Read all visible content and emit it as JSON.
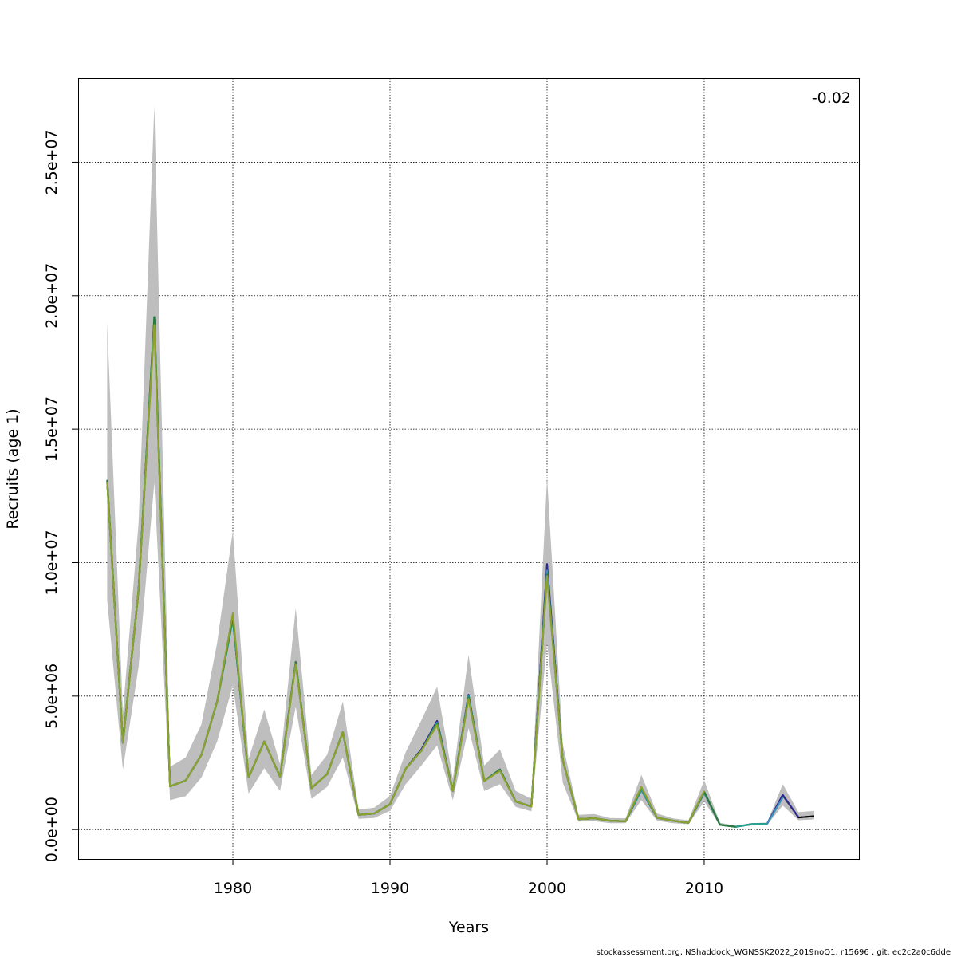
{
  "chart_data": {
    "type": "line",
    "title": "",
    "xlabel": "Years",
    "ylabel": "Recruits (age 1)",
    "annotation": "-0.02",
    "footer": "stockassessment.org, NShaddock_WGNSSK2022_2019noQ1, r15696 , git: ec2c2a0c6dde",
    "xlim": [
      1970.15,
      2019.85
    ],
    "ylim": [
      -1100000,
      28150000
    ],
    "xticks": [
      1980,
      1990,
      2000,
      2010
    ],
    "xtick_labels": [
      "1980",
      "1990",
      "2000",
      "2010"
    ],
    "yticks": [
      0,
      5000000,
      10000000,
      15000000,
      20000000,
      25000000
    ],
    "ytick_labels": [
      "0.0e+00",
      "5.0e+06",
      "1.0e+07",
      "1.5e+07",
      "2.0e+07",
      "2.5e+07"
    ],
    "grid": true,
    "band": {
      "color": "#bebebe",
      "years": [
        1972,
        1973,
        1974,
        1975,
        1976,
        1977,
        1978,
        1979,
        1980,
        1981,
        1982,
        1983,
        1984,
        1985,
        1986,
        1987,
        1988,
        1989,
        1990,
        1991,
        1992,
        1993,
        1994,
        1995,
        1996,
        1997,
        1998,
        1999,
        2000,
        2001,
        2002,
        2003,
        2004,
        2005,
        2006,
        2007,
        2008,
        2009,
        2010,
        2011,
        2012,
        2013,
        2014,
        2015,
        2016,
        2017
      ],
      "upper": [
        19000000,
        4400000,
        11500000,
        27100000,
        2350000,
        2700000,
        3950000,
        7000000,
        11200000,
        2650000,
        4500000,
        2450000,
        8300000,
        2050000,
        2800000,
        4800000,
        750000,
        820000,
        1250000,
        2900000,
        4100000,
        5350000,
        1900000,
        6550000,
        2400000,
        3000000,
        1450000,
        1150000,
        13200000,
        3200000,
        550000,
        580000,
        430000,
        420000,
        2050000,
        600000,
        420000,
        340000,
        1850000,
        250000,
        150000,
        240000,
        260000,
        1700000,
        650000,
        700000
      ],
      "lower": [
        8600000,
        2250000,
        6100000,
        13000000,
        1100000,
        1250000,
        1950000,
        3300000,
        5400000,
        1350000,
        2300000,
        1450000,
        4600000,
        1150000,
        1600000,
        2700000,
        400000,
        430000,
        700000,
        1700000,
        2400000,
        3150000,
        1100000,
        3800000,
        1450000,
        1700000,
        850000,
        680000,
        7000000,
        1750000,
        300000,
        310000,
        240000,
        240000,
        1100000,
        330000,
        240000,
        200000,
        1050000,
        160000,
        90000,
        150000,
        170000,
        900000,
        350000,
        380000
      ]
    },
    "series": [
      {
        "name": "",
        "color": "#000000",
        "values": [
          13050000,
          3250000,
          9000000,
          19100000,
          1620000,
          1840000,
          2800000,
          4800000,
          7900000,
          1950000,
          3300000,
          1980000,
          6250000,
          1550000,
          2080000,
          3650000,
          550000,
          600000,
          950000,
          2280000,
          3000000,
          4070000,
          1450000,
          5050000,
          1820000,
          2250000,
          1050000,
          860000,
          9900000,
          2600000,
          390000,
          420000,
          330000,
          310000,
          1480000,
          440000,
          330000,
          250000,
          1380000,
          180000,
          100000,
          200000,
          210000,
          1280000,
          450000,
          500000
        ]
      },
      {
        "name": "",
        "color": "#2f2a8f",
        "values": [
          13050000,
          3250000,
          9000000,
          19100000,
          1620000,
          1840000,
          2800000,
          4800000,
          7900000,
          1950000,
          3300000,
          1980000,
          6250000,
          1550000,
          2080000,
          3650000,
          550000,
          600000,
          950000,
          2280000,
          3000000,
          4070000,
          1450000,
          5050000,
          1820000,
          2250000,
          1050000,
          860000,
          9950000,
          2600000,
          390000,
          420000,
          330000,
          310000,
          1480000,
          440000,
          330000,
          250000,
          1380000,
          180000,
          100000,
          200000,
          210000,
          1300000,
          460000
        ]
      },
      {
        "name": "",
        "color": "#3a8fc0",
        "values": [
          13050000,
          3250000,
          9000000,
          19150000,
          1620000,
          1840000,
          2800000,
          4800000,
          7900000,
          1950000,
          3300000,
          1980000,
          6250000,
          1550000,
          2080000,
          3650000,
          550000,
          600000,
          950000,
          2280000,
          2950000,
          4000000,
          1450000,
          5000000,
          1820000,
          2250000,
          1050000,
          860000,
          9700000,
          2600000,
          390000,
          420000,
          330000,
          310000,
          1480000,
          440000,
          330000,
          250000,
          1380000,
          180000,
          100000,
          200000,
          210000,
          1200000
        ]
      },
      {
        "name": "",
        "color": "#23a58a",
        "values": [
          13050000,
          3250000,
          9000000,
          19200000,
          1620000,
          1840000,
          2800000,
          4800000,
          7900000,
          1950000,
          3300000,
          1980000,
          6280000,
          1550000,
          2080000,
          3650000,
          550000,
          600000,
          950000,
          2280000,
          2950000,
          4000000,
          1450000,
          5000000,
          1820000,
          2250000,
          1050000,
          860000,
          9600000,
          2600000,
          390000,
          420000,
          330000,
          310000,
          1530000,
          440000,
          330000,
          250000,
          1420000,
          180000,
          100000,
          200000,
          210000
        ]
      },
      {
        "name": "",
        "color": "#2c7a3a",
        "values": [
          13100000,
          3250000,
          9000000,
          19200000,
          1620000,
          1840000,
          2800000,
          4800000,
          8000000,
          1950000,
          3300000,
          1980000,
          6280000,
          1550000,
          2080000,
          3650000,
          550000,
          600000,
          950000,
          2280000,
          2950000,
          3950000,
          1450000,
          4950000,
          1820000,
          2250000,
          1050000,
          860000,
          9550000,
          2600000,
          390000,
          420000,
          330000,
          310000,
          1580000,
          440000,
          330000,
          250000,
          1420000,
          180000,
          100000
        ]
      },
      {
        "name": "",
        "color": "#8da12e",
        "values": [
          13000000,
          3250000,
          9000000,
          18900000,
          1620000,
          1840000,
          2800000,
          4800000,
          8100000,
          1950000,
          3300000,
          1980000,
          6200000,
          1550000,
          2080000,
          3650000,
          550000,
          600000,
          950000,
          2280000,
          2950000,
          3920000,
          1450000,
          4900000,
          1820000,
          2200000,
          1050000,
          860000,
          9500000,
          2600000,
          390000,
          420000,
          330000,
          310000,
          1600000,
          440000,
          330000,
          250000,
          1450000
        ]
      }
    ]
  }
}
